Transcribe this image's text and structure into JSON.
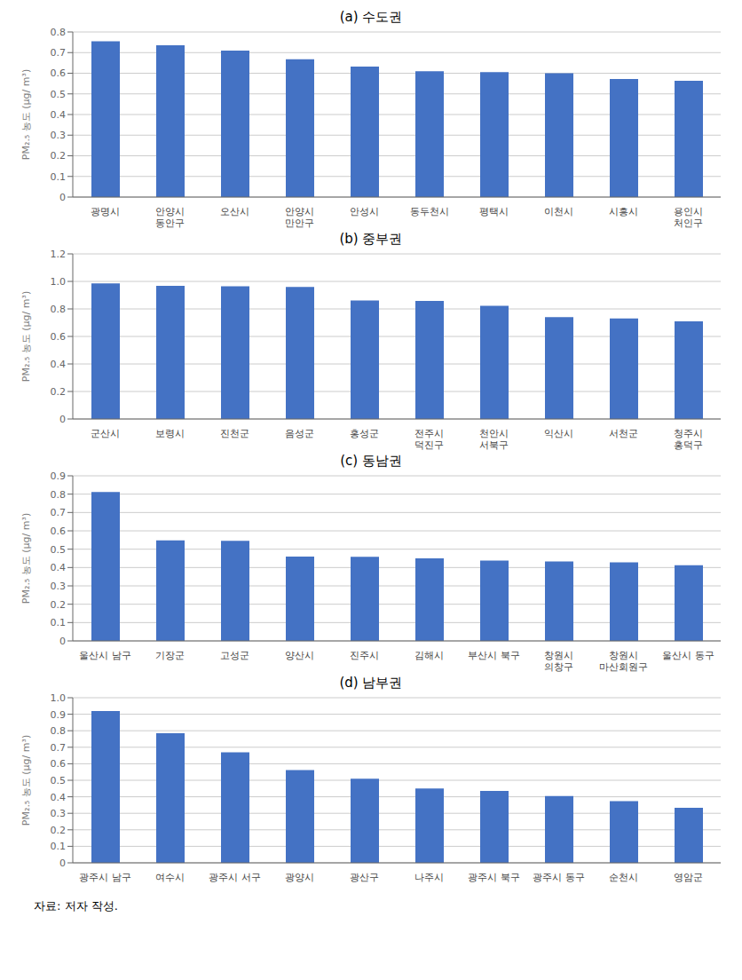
{
  "chart_data": [
    {
      "type": "bar",
      "title": "(a)  수도권",
      "y_label": "PM₂.₅ 농도 (μg/ m³)",
      "categories": [
        "광명시",
        "안양시\n동안구",
        "오산시",
        "안양시\n만안구",
        "안성시",
        "동두천시",
        "평택시",
        "이천시",
        "시흥시",
        "용인시\n처인구"
      ],
      "values": [
        0.755,
        0.735,
        0.71,
        0.668,
        0.632,
        0.61,
        0.605,
        0.6,
        0.572,
        0.563
      ],
      "color": "#4472C4",
      "ylim": [
        0,
        0.8
      ],
      "yticks": [
        0,
        0.1,
        0.2,
        0.3,
        0.4,
        0.5,
        0.6,
        0.7,
        0.8
      ],
      "grid": true
    },
    {
      "type": "bar",
      "title": "(b)  중부권",
      "y_label": "PM₂.₅ 농도 (μg/ m³)",
      "categories": [
        "군산시",
        "보령시",
        "진천군",
        "음성군",
        "홍성군",
        "전주시\n덕진구",
        "천안시\n서북구",
        "익산시",
        "서천군",
        "청주시\n홍덕구"
      ],
      "values": [
        0.985,
        0.968,
        0.965,
        0.96,
        0.862,
        0.858,
        0.822,
        0.74,
        0.73,
        0.71
      ],
      "color": "#4472C4",
      "ylim": [
        0,
        1.2
      ],
      "yticks": [
        0,
        0.2,
        0.4,
        0.6,
        0.8,
        {
          "value": 1.0,
          "label": "1.0"
        },
        1.2
      ],
      "grid": true
    },
    {
      "type": "bar",
      "title": "(c)  동남권",
      "y_label": "PM₂.₅ 농도 (μg/ m³)",
      "categories": [
        "울산시 남구",
        "기장군",
        "고성군",
        "양산시",
        "진주시",
        "김해시",
        "부산시 북구",
        "창원시\n의창구",
        "창원시\n마산회원구",
        "울산시 동구"
      ],
      "values": [
        0.812,
        0.548,
        0.546,
        0.46,
        0.458,
        0.45,
        0.438,
        0.433,
        0.428,
        0.413
      ],
      "color": "#4472C4",
      "ylim": [
        0,
        0.9
      ],
      "yticks": [
        0,
        0.1,
        0.2,
        0.3,
        0.4,
        0.5,
        0.6,
        0.7,
        0.8,
        0.9
      ],
      "grid": true
    },
    {
      "type": "bar",
      "title": "(d)  남부권",
      "y_label": "PM₂.₅ 농도 (μg/ m³)",
      "categories": [
        "광주시 남구",
        "여수시",
        "광주시 서구",
        "광양시",
        "광산구",
        "나주시",
        "광주시 북구",
        "광주시 동구",
        "순천시",
        "영암군"
      ],
      "values": [
        0.92,
        0.785,
        0.67,
        0.562,
        0.51,
        0.45,
        0.435,
        0.405,
        0.373,
        0.333
      ],
      "color": "#4472C4",
      "ylim": [
        0,
        1.0
      ],
      "yticks": [
        0,
        0.1,
        0.2,
        0.3,
        0.4,
        0.5,
        0.6,
        0.7,
        0.8,
        0.9,
        {
          "value": 1.0,
          "label": "1.0"
        }
      ],
      "grid": true,
      "annotations": [
        "자료: 저자 작성."
      ]
    }
  ]
}
